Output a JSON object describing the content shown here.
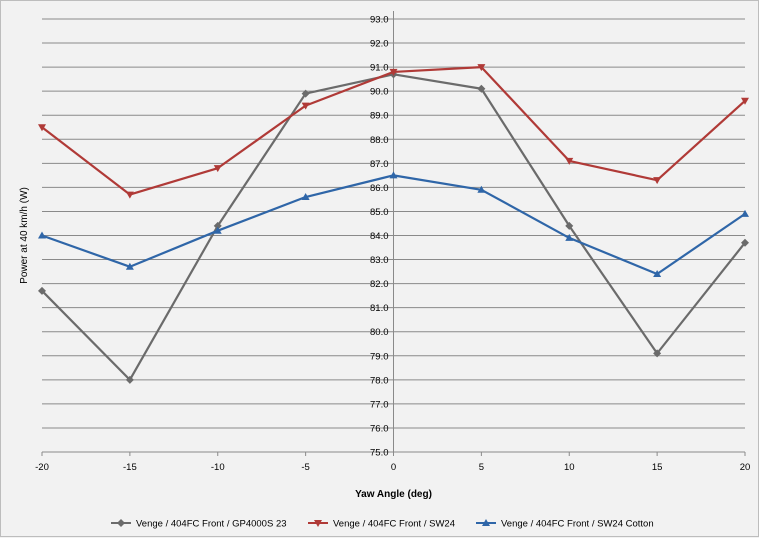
{
  "chart_data": {
    "type": "line",
    "xlabel": "Yaw Angle (deg)",
    "ylabel": "Power at 40 km/h (W)",
    "x": [
      -20,
      -15,
      -10,
      -5,
      0,
      5,
      10,
      15,
      20
    ],
    "xlim": [
      -20,
      20
    ],
    "ylim": [
      75,
      93
    ],
    "x_tick_labels": [
      "-20",
      "-15",
      "-10",
      "-5",
      "0",
      "5",
      "10",
      "15",
      "20"
    ],
    "y_tick_labels": [
      "75.0",
      "76.0",
      "77.0",
      "78.0",
      "79.0",
      "80.0",
      "81.0",
      "82.0",
      "83.0",
      "84.0",
      "85.0",
      "86.0",
      "87.0",
      "88.0",
      "89.0",
      "90.0",
      "91.0",
      "92.0",
      "93.0"
    ],
    "grid": true,
    "legend_position": "bottom",
    "series": [
      {
        "name": "Venge / 404FC Front / GP4000S 23",
        "color": "#6b6b6b",
        "marker": "diamond",
        "values": [
          81.7,
          78.0,
          84.4,
          89.9,
          90.7,
          90.1,
          84.4,
          79.1,
          83.7
        ]
      },
      {
        "name": "Venge / 404FC Front / SW24",
        "color": "#b03a37",
        "marker": "triangle-down",
        "values": [
          88.5,
          85.7,
          86.8,
          89.4,
          90.8,
          91.0,
          87.1,
          86.3,
          89.6
        ]
      },
      {
        "name": "Venge / 404FC Front / SW24 Cotton",
        "color": "#2f66a8",
        "marker": "triangle-up",
        "values": [
          84.0,
          82.7,
          84.2,
          85.6,
          86.5,
          85.9,
          83.9,
          82.4,
          84.9
        ]
      }
    ]
  }
}
